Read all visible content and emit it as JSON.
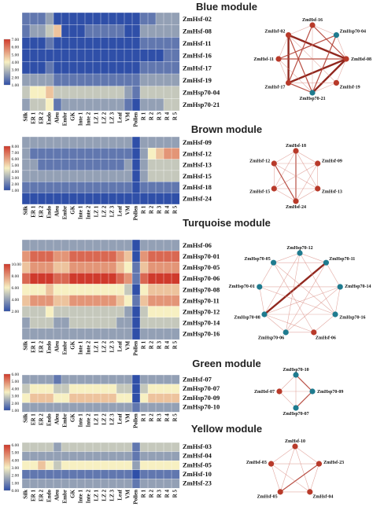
{
  "tissues": [
    "Silk",
    "ER 1",
    "ER 2",
    "Endo",
    "Aleu",
    "Embr",
    "GK",
    "Inte 1",
    "Inte 2",
    "LZ 1",
    "LZ 2",
    "LZ 3",
    "Leaf",
    "VM",
    "Pollen",
    "R 1",
    "R 2",
    "R 3",
    "R 4",
    "R 5"
  ],
  "colors": {
    "low": "#2f4fa8",
    "mid": "#f7f0c2",
    "high": "#cf3a2c",
    "net_blue": "#1f7b8f",
    "net_red": "#b83a2a"
  },
  "chart_data": [
    {
      "type": "heatmap",
      "title": "Blue module",
      "legend_ticks": [
        "7.00",
        "6.00",
        "5.00",
        "4.00",
        "3.00",
        "2.00",
        "1.00"
      ],
      "rows": [
        "ZmHsf-02",
        "ZmHsf-08",
        "ZmHsf-11",
        "ZmHsf-16",
        "ZmHsf-17",
        "ZmHsf-19",
        "ZmHsp70-04",
        "ZmHsp70-21"
      ],
      "values": [
        [
          2,
          2,
          2,
          3,
          1,
          1,
          1,
          1,
          1,
          1,
          1,
          1,
          1,
          1,
          1,
          2,
          2,
          3,
          3,
          3
        ],
        [
          2,
          3,
          3,
          4,
          6,
          1,
          1,
          1,
          2,
          2,
          2,
          2,
          2,
          1,
          1,
          3,
          3,
          3,
          3,
          3
        ],
        [
          1,
          1,
          1,
          2,
          1,
          1,
          1,
          1,
          1,
          1,
          1,
          1,
          1,
          1,
          1,
          2,
          2,
          2,
          2,
          2
        ],
        [
          1,
          1,
          1,
          1,
          1,
          1,
          1,
          1,
          1,
          1,
          1,
          1,
          1,
          1,
          1,
          1,
          1,
          1,
          2,
          2
        ],
        [
          1,
          1,
          1,
          2,
          1,
          1,
          1,
          1,
          1,
          1,
          1,
          1,
          1,
          1,
          1,
          2,
          2,
          2,
          2,
          2
        ],
        [
          3,
          3,
          3,
          3,
          2,
          2,
          2,
          2,
          2,
          2,
          2,
          2,
          2,
          2,
          2,
          3,
          3,
          3,
          3,
          3
        ],
        [
          4,
          5,
          5,
          6,
          4,
          4,
          4,
          4,
          4,
          4,
          4,
          4,
          4,
          3,
          2,
          4,
          4,
          4,
          4,
          4
        ],
        [
          3,
          4,
          4,
          5,
          2,
          3,
          3,
          3,
          3,
          3,
          3,
          3,
          3,
          2,
          1,
          3,
          3,
          3,
          4,
          4
        ]
      ],
      "network": {
        "nodes": [
          {
            "id": "ZmHsf-16",
            "color": "red"
          },
          {
            "id": "ZmHsp70-04",
            "color": "blue"
          },
          {
            "id": "ZmHsf-08",
            "color": "red"
          },
          {
            "id": "ZmHsf-19",
            "color": "red"
          },
          {
            "id": "ZmHsp70-21",
            "color": "blue"
          },
          {
            "id": "ZmHsf-17",
            "color": "red"
          },
          {
            "id": "ZmHsf-11",
            "color": "red"
          },
          {
            "id": "ZmHsf-02",
            "color": "red"
          }
        ],
        "edges": [
          [
            7,
            2,
            3
          ],
          [
            7,
            5,
            3
          ],
          [
            2,
            5,
            3
          ],
          [
            7,
            4,
            2
          ],
          [
            0,
            5,
            2
          ],
          [
            1,
            6,
            2
          ],
          [
            2,
            4,
            3
          ],
          [
            7,
            3,
            1
          ],
          [
            0,
            2,
            2
          ],
          [
            6,
            2,
            2
          ],
          [
            5,
            3,
            1
          ],
          [
            1,
            4,
            2
          ],
          [
            0,
            4,
            1
          ],
          [
            6,
            4,
            1
          ],
          [
            0,
            1,
            1
          ],
          [
            1,
            2,
            1
          ],
          [
            2,
            3,
            1
          ],
          [
            3,
            4,
            1
          ],
          [
            4,
            5,
            2
          ],
          [
            5,
            6,
            1
          ],
          [
            6,
            7,
            1
          ],
          [
            7,
            0,
            1
          ]
        ]
      }
    },
    {
      "type": "heatmap",
      "title": "Brown module",
      "legend_ticks": [
        "8.00",
        "7.00",
        "6.00",
        "5.00",
        "4.00",
        "3.00",
        "2.00",
        "1.00"
      ],
      "rows": [
        "ZmHsf-09",
        "ZmHsf-12",
        "ZmHsf-13",
        "ZmHsf-15",
        "ZmHsf-18",
        "ZmHsf-24"
      ],
      "values": [
        [
          3,
          3,
          3,
          3,
          3,
          3,
          3,
          3,
          3,
          3,
          3,
          3,
          3,
          3,
          1,
          3,
          3,
          3,
          3,
          3
        ],
        [
          3,
          2,
          2,
          2,
          2,
          2,
          2,
          2,
          2,
          2,
          2,
          2,
          2,
          2,
          1,
          3,
          5,
          6,
          7,
          7
        ],
        [
          3,
          3,
          2,
          2,
          2,
          2,
          2,
          2,
          2,
          2,
          2,
          2,
          2,
          3,
          1,
          3,
          4,
          4,
          4,
          4
        ],
        [
          3,
          3,
          3,
          3,
          3,
          3,
          3,
          3,
          3,
          3,
          3,
          3,
          3,
          3,
          1,
          3,
          4,
          4,
          4,
          4
        ],
        [
          2,
          2,
          2,
          2,
          2,
          2,
          2,
          2,
          2,
          2,
          2,
          2,
          2,
          2,
          1,
          2,
          2,
          2,
          2,
          2
        ],
        [
          1,
          1,
          1,
          1,
          1,
          1,
          1,
          1,
          1,
          1,
          1,
          1,
          1,
          1,
          1,
          1,
          1,
          1,
          1,
          1
        ]
      ],
      "network": {
        "nodes": [
          {
            "id": "ZmHsf-18",
            "color": "red"
          },
          {
            "id": "ZmHsf-09",
            "color": "red"
          },
          {
            "id": "ZmHsf-13",
            "color": "red"
          },
          {
            "id": "ZmHsf-24",
            "color": "red"
          },
          {
            "id": "ZmHsf-15",
            "color": "red"
          },
          {
            "id": "ZmHsf-12",
            "color": "red"
          }
        ],
        "edges": [
          [
            0,
            1,
            1
          ],
          [
            0,
            2,
            1
          ],
          [
            0,
            3,
            2
          ],
          [
            0,
            4,
            1
          ],
          [
            0,
            5,
            1
          ],
          [
            1,
            3,
            1
          ],
          [
            1,
            4,
            1
          ],
          [
            1,
            5,
            1
          ],
          [
            2,
            4,
            1
          ],
          [
            2,
            5,
            1
          ],
          [
            3,
            5,
            2
          ],
          [
            4,
            5,
            1
          ],
          [
            1,
            2,
            1
          ],
          [
            2,
            3,
            1
          ],
          [
            3,
            4,
            1
          ]
        ]
      }
    },
    {
      "type": "heatmap",
      "title": "Turquoise module",
      "legend_ticks": [
        "10.00",
        "8.00",
        "6.00",
        "4.00",
        "2.00"
      ],
      "rows": [
        "ZmHsf-06",
        "ZmHsp70-01",
        "ZmHsp70-05",
        "ZmHsp70-06",
        "ZmHsp70-08",
        "ZmHsp70-11",
        "ZmHsp70-12",
        "ZmHsp70-14",
        "ZmHsp70-16"
      ],
      "values": [
        [
          3,
          3,
          3,
          3,
          3,
          3,
          3,
          3,
          3,
          3,
          3,
          3,
          3,
          3,
          1,
          3,
          3,
          3,
          3,
          3
        ],
        [
          7,
          8,
          8,
          8,
          7,
          7,
          8,
          8,
          8,
          8,
          8,
          8,
          7,
          6,
          1,
          7,
          8,
          8,
          8,
          8
        ],
        [
          6,
          7,
          7,
          7,
          6,
          6,
          7,
          7,
          7,
          7,
          7,
          7,
          6,
          5,
          2,
          6,
          7,
          7,
          7,
          7
        ],
        [
          8,
          9,
          9,
          9,
          8,
          8,
          9,
          9,
          9,
          9,
          9,
          9,
          8,
          7,
          2,
          8,
          9,
          9,
          9,
          9
        ],
        [
          5,
          5,
          5,
          6,
          5,
          5,
          5,
          5,
          5,
          5,
          5,
          5,
          5,
          4,
          1,
          5,
          6,
          6,
          6,
          6
        ],
        [
          6,
          7,
          7,
          7,
          6,
          6,
          7,
          7,
          7,
          7,
          7,
          7,
          6,
          5,
          2,
          6,
          7,
          7,
          7,
          7
        ],
        [
          4,
          4,
          4,
          5,
          4,
          4,
          4,
          4,
          4,
          4,
          4,
          4,
          4,
          3,
          1,
          4,
          5,
          5,
          5,
          5
        ],
        [
          3,
          4,
          4,
          4,
          3,
          3,
          4,
          4,
          4,
          4,
          4,
          4,
          3,
          3,
          1,
          4,
          4,
          4,
          4,
          4
        ],
        [
          3,
          3,
          3,
          3,
          3,
          3,
          3,
          3,
          3,
          3,
          3,
          3,
          3,
          3,
          1,
          3,
          3,
          3,
          3,
          3
        ]
      ],
      "network": {
        "nodes": [
          {
            "id": "ZmHsp70-12",
            "color": "blue"
          },
          {
            "id": "ZmHsp70-11",
            "color": "blue"
          },
          {
            "id": "ZmHsp70-14",
            "color": "blue"
          },
          {
            "id": "ZmHsp70-16",
            "color": "blue"
          },
          {
            "id": "ZmHsf-06",
            "color": "red"
          },
          {
            "id": "ZmHsp70-06",
            "color": "blue"
          },
          {
            "id": "ZmHsp70-08",
            "color": "blue"
          },
          {
            "id": "ZmHsp70-01",
            "color": "blue"
          },
          {
            "id": "ZmHsp70-05",
            "color": "blue"
          }
        ],
        "edges": [
          [
            1,
            6,
            3
          ],
          [
            0,
            5,
            1
          ],
          [
            0,
            6,
            1
          ],
          [
            0,
            3,
            1
          ],
          [
            8,
            1,
            1
          ],
          [
            8,
            3,
            1
          ],
          [
            7,
            2,
            1
          ],
          [
            7,
            3,
            1
          ],
          [
            5,
            1,
            1
          ],
          [
            5,
            2,
            1
          ],
          [
            6,
            2,
            1
          ],
          [
            6,
            3,
            1
          ],
          [
            0,
            1,
            1
          ],
          [
            1,
            2,
            1
          ],
          [
            2,
            3,
            1
          ],
          [
            3,
            4,
            1
          ],
          [
            4,
            5,
            1
          ],
          [
            5,
            6,
            1
          ],
          [
            6,
            7,
            1
          ],
          [
            7,
            8,
            1
          ],
          [
            8,
            0,
            1
          ],
          [
            4,
            6,
            1
          ],
          [
            4,
            8,
            1
          ]
        ]
      }
    },
    {
      "type": "heatmap",
      "title": "Green module",
      "legend_ticks": [
        "6.00",
        "5.00",
        "4.00",
        "3.00",
        "2.00",
        "1.00"
      ],
      "rows": [
        "ZmHsf-07",
        "ZmHsp70-07",
        "ZmHsp70-09",
        "ZmHsp70-10"
      ],
      "values": [
        [
          3,
          3,
          3,
          3,
          2,
          3,
          3,
          3,
          3,
          3,
          3,
          3,
          3,
          3,
          1,
          3,
          3,
          3,
          3,
          3
        ],
        [
          4,
          5,
          5,
          5,
          4,
          4,
          5,
          5,
          5,
          5,
          5,
          5,
          4,
          4,
          1,
          4,
          5,
          5,
          5,
          5
        ],
        [
          5,
          6,
          6,
          6,
          5,
          5,
          6,
          6,
          6,
          6,
          6,
          6,
          5,
          5,
          1,
          5,
          6,
          6,
          6,
          6
        ],
        [
          3,
          3,
          3,
          3,
          3,
          3,
          3,
          3,
          3,
          3,
          3,
          3,
          3,
          3,
          2,
          3,
          3,
          3,
          3,
          3
        ]
      ],
      "network": {
        "nodes": [
          {
            "id": "ZmHsp70-10",
            "color": "blue"
          },
          {
            "id": "ZmHsp70-09",
            "color": "blue"
          },
          {
            "id": "ZmHsp70-07",
            "color": "blue"
          },
          {
            "id": "ZmHsf-07",
            "color": "red"
          }
        ],
        "edges": [
          [
            0,
            1,
            2
          ],
          [
            1,
            2,
            2
          ],
          [
            0,
            2,
            1
          ],
          [
            3,
            0,
            1
          ],
          [
            3,
            1,
            1
          ],
          [
            3,
            2,
            1
          ]
        ]
      }
    },
    {
      "type": "heatmap",
      "title": "Yellow module",
      "legend_ticks": [
        "6.00",
        "5.00",
        "4.00",
        "3.00",
        "2.00",
        "1.00",
        "0.00"
      ],
      "rows": [
        "ZmHsf-03",
        "ZmHsf-04",
        "ZmHsf-05",
        "ZmHsf-10",
        "ZmHsf-23"
      ],
      "values": [
        [
          4,
          4,
          4,
          4,
          3,
          4,
          4,
          4,
          4,
          4,
          4,
          4,
          4,
          4,
          2,
          4,
          4,
          4,
          4,
          4
        ],
        [
          3,
          3,
          3,
          3,
          3,
          3,
          3,
          3,
          3,
          3,
          3,
          3,
          3,
          3,
          2,
          3,
          3,
          3,
          3,
          3
        ],
        [
          5,
          5,
          6,
          5,
          4,
          5,
          5,
          5,
          5,
          5,
          5,
          5,
          5,
          5,
          3,
          5,
          5,
          5,
          5,
          5
        ],
        [
          2,
          2,
          2,
          2,
          2,
          2,
          2,
          2,
          2,
          2,
          2,
          2,
          2,
          2,
          1,
          2,
          2,
          2,
          2,
          2
        ],
        [
          3,
          3,
          3,
          3,
          3,
          3,
          3,
          3,
          3,
          3,
          3,
          3,
          3,
          3,
          2,
          3,
          3,
          3,
          3,
          3
        ]
      ],
      "network": {
        "nodes": [
          {
            "id": "ZmHsf-10",
            "color": "red"
          },
          {
            "id": "ZmHsf-23",
            "color": "red"
          },
          {
            "id": "ZmHsf-04",
            "color": "red"
          },
          {
            "id": "ZmHsf-05",
            "color": "red"
          },
          {
            "id": "ZmHsf-03",
            "color": "red"
          }
        ],
        "edges": [
          [
            0,
            1,
            1
          ],
          [
            0,
            2,
            1
          ],
          [
            0,
            3,
            1
          ],
          [
            0,
            4,
            1
          ],
          [
            1,
            2,
            1
          ],
          [
            1,
            3,
            2
          ],
          [
            1,
            4,
            1
          ],
          [
            2,
            3,
            1
          ],
          [
            2,
            4,
            1
          ],
          [
            3,
            4,
            1
          ]
        ]
      }
    }
  ]
}
